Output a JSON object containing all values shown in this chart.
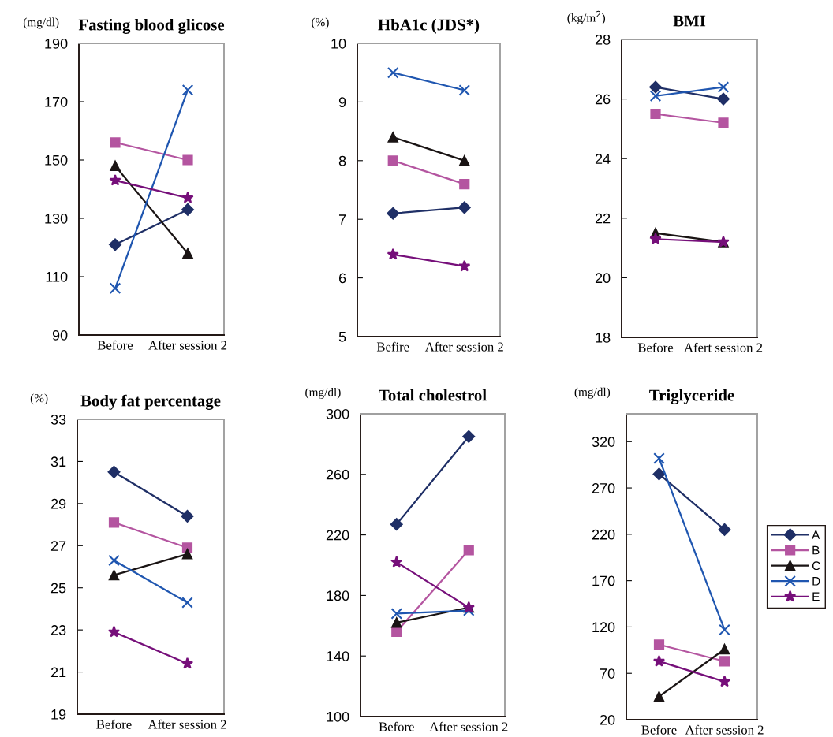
{
  "chart_data": [
    {
      "type": "line",
      "title": "Fasting blood glicose",
      "ylabel": "(mg/dl)",
      "categories": [
        "Before",
        "After session 2"
      ],
      "ylim": [
        90,
        190
      ],
      "yticks": [
        90,
        110,
        130,
        150,
        170,
        190
      ],
      "grid": false,
      "legend": false,
      "series": [
        {
          "color": "#1f2f66",
          "marker": "diamond",
          "values": [
            121,
            133
          ]
        },
        {
          "color": "#b455a0",
          "marker": "square",
          "values": [
            156,
            150
          ]
        },
        {
          "color": "#1a1414",
          "marker": "triangle",
          "values": [
            148,
            118
          ]
        },
        {
          "color": "#1f56b0",
          "marker": "cross",
          "values": [
            106,
            174
          ]
        },
        {
          "color": "#760f7a",
          "marker": "star",
          "values": [
            143,
            137
          ]
        }
      ]
    },
    {
      "type": "line",
      "title": "HbA1c (JDS*)",
      "ylabel": "(%)",
      "categories": [
        "Befire",
        "After session 2"
      ],
      "ylim": [
        5,
        10
      ],
      "yticks": [
        5,
        6,
        7,
        8,
        9,
        10
      ],
      "grid": false,
      "legend": false,
      "series": [
        {
          "color": "#1f2f66",
          "marker": "diamond",
          "values": [
            7.1,
            7.2
          ]
        },
        {
          "color": "#b455a0",
          "marker": "square",
          "values": [
            8.0,
            7.6
          ]
        },
        {
          "color": "#1a1414",
          "marker": "triangle",
          "values": [
            8.4,
            8.0
          ]
        },
        {
          "color": "#1f56b0",
          "marker": "cross",
          "values": [
            9.5,
            9.2
          ]
        },
        {
          "color": "#760f7a",
          "marker": "star",
          "values": [
            6.4,
            6.2
          ]
        }
      ]
    },
    {
      "type": "line",
      "title": "BMI",
      "ylabel": "(kg/m$^{2}$)",
      "categories": [
        "Before",
        "Afert session 2"
      ],
      "ylim": [
        18,
        28
      ],
      "yticks": [
        18,
        20,
        22,
        24,
        26,
        28
      ],
      "grid": false,
      "legend": false,
      "series": [
        {
          "color": "#1f2f66",
          "marker": "diamond",
          "values": [
            26.4,
            26.0
          ]
        },
        {
          "color": "#b455a0",
          "marker": "square",
          "values": [
            25.5,
            25.2
          ]
        },
        {
          "color": "#1a1414",
          "marker": "triangle",
          "values": [
            21.5,
            21.2
          ]
        },
        {
          "color": "#1f56b0",
          "marker": "cross",
          "values": [
            26.1,
            26.4
          ]
        },
        {
          "color": "#760f7a",
          "marker": "star",
          "values": [
            21.3,
            21.2
          ]
        }
      ]
    },
    {
      "type": "line",
      "title": "Body fat percentage",
      "ylabel": "(%)",
      "categories": [
        "Before",
        "After session 2"
      ],
      "ylim": [
        19,
        33
      ],
      "yticks": [
        19,
        21,
        23,
        25,
        27,
        29,
        31,
        33
      ],
      "grid": false,
      "legend": false,
      "series": [
        {
          "color": "#1f2f66",
          "marker": "diamond",
          "values": [
            30.5,
            28.4
          ]
        },
        {
          "color": "#b455a0",
          "marker": "square",
          "values": [
            28.1,
            26.9
          ]
        },
        {
          "color": "#1a1414",
          "marker": "triangle",
          "values": [
            25.6,
            26.6
          ]
        },
        {
          "color": "#1f56b0",
          "marker": "cross",
          "values": [
            26.3,
            24.3
          ]
        },
        {
          "color": "#760f7a",
          "marker": "star",
          "values": [
            22.9,
            21.4
          ]
        }
      ]
    },
    {
      "type": "line",
      "title": "Total cholestrol",
      "ylabel": "(mg/dl)",
      "categories": [
        "Before",
        "After session 2"
      ],
      "ylim": [
        100,
        300
      ],
      "yticks": [
        100,
        140,
        180,
        220,
        260,
        300
      ],
      "grid": false,
      "legend": false,
      "series": [
        {
          "color": "#1f2f66",
          "marker": "diamond",
          "values": [
            227,
            285
          ]
        },
        {
          "color": "#b455a0",
          "marker": "square",
          "values": [
            156,
            210
          ]
        },
        {
          "color": "#1a1414",
          "marker": "triangle",
          "values": [
            162,
            172
          ]
        },
        {
          "color": "#1f56b0",
          "marker": "cross",
          "values": [
            168,
            170
          ]
        },
        {
          "color": "#760f7a",
          "marker": "star",
          "values": [
            202,
            172
          ]
        }
      ]
    },
    {
      "type": "line",
      "title": "Triglyceride",
      "ylabel": "(mg/dl)",
      "categories": [
        "Before",
        "After session 2"
      ],
      "ylim": [
        20,
        350
      ],
      "yticks": [
        20,
        70,
        120,
        170,
        220,
        270,
        320
      ],
      "grid": false,
      "legend": "right",
      "series": [
        {
          "name": "A",
          "color": "#1f2f66",
          "marker": "diamond",
          "values": [
            285,
            225
          ]
        },
        {
          "name": "B",
          "color": "#b455a0",
          "marker": "square",
          "values": [
            101,
            83
          ]
        },
        {
          "name": "C",
          "color": "#1a1414",
          "marker": "triangle",
          "values": [
            45,
            96
          ]
        },
        {
          "name": "D",
          "color": "#1f56b0",
          "marker": "cross",
          "values": [
            302,
            117
          ]
        },
        {
          "name": "E",
          "color": "#760f7a",
          "marker": "star",
          "values": [
            83,
            61
          ]
        }
      ]
    }
  ]
}
